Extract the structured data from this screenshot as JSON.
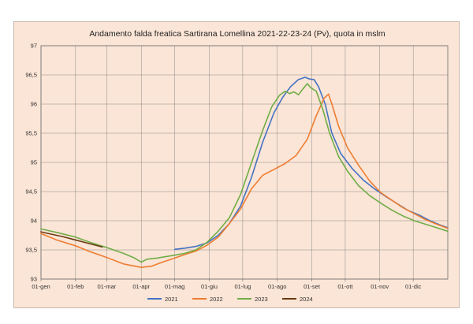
{
  "chart_data": {
    "type": "line",
    "title": "Andamento  falda freatica Sartirana Lomellina 2021-22-23-24 (Pv), quota in mslm",
    "xlabel": "",
    "ylabel": "",
    "ylim": [
      93,
      97
    ],
    "yticks": [
      93,
      93.5,
      94,
      94.5,
      95,
      95.5,
      96,
      96.5,
      97
    ],
    "ytick_labels": [
      "93",
      "93,5",
      "94",
      "94,5",
      "95",
      "95,5",
      "96",
      "96,5",
      "97"
    ],
    "x_unit": "day of year",
    "xlim": [
      1,
      366
    ],
    "xticks": [
      1,
      32,
      60,
      91,
      121,
      152,
      182,
      213,
      244,
      274,
      305,
      335
    ],
    "xtick_labels": [
      "01-gen",
      "01-feb",
      "01-mar",
      "01-apr",
      "01-mag",
      "01-giu",
      "01-lug",
      "01-ago",
      "01-set",
      "01-ott",
      "01-nov",
      "01-dic"
    ],
    "grid": true,
    "legend_position": "bottom",
    "series": [
      {
        "name": "2021",
        "color": "#4472c4",
        "points": [
          [
            121,
            93.51
          ],
          [
            130,
            93.53
          ],
          [
            140,
            93.56
          ],
          [
            150,
            93.62
          ],
          [
            160,
            93.75
          ],
          [
            170,
            93.95
          ],
          [
            180,
            94.25
          ],
          [
            190,
            94.75
          ],
          [
            200,
            95.35
          ],
          [
            210,
            95.85
          ],
          [
            218,
            96.12
          ],
          [
            225,
            96.3
          ],
          [
            232,
            96.42
          ],
          [
            238,
            96.46
          ],
          [
            242,
            96.43
          ],
          [
            246,
            96.42
          ],
          [
            250,
            96.3
          ],
          [
            256,
            96.0
          ],
          [
            262,
            95.5
          ],
          [
            270,
            95.15
          ],
          [
            280,
            94.9
          ],
          [
            290,
            94.7
          ],
          [
            300,
            94.55
          ],
          [
            310,
            94.42
          ],
          [
            320,
            94.3
          ],
          [
            330,
            94.18
          ],
          [
            340,
            94.1
          ],
          [
            350,
            94.0
          ],
          [
            360,
            93.92
          ],
          [
            366,
            93.88
          ]
        ]
      },
      {
        "name": "2022",
        "color": "#ed7d31",
        "points": [
          [
            1,
            93.78
          ],
          [
            15,
            93.67
          ],
          [
            32,
            93.57
          ],
          [
            45,
            93.47
          ],
          [
            60,
            93.37
          ],
          [
            75,
            93.26
          ],
          [
            91,
            93.2
          ],
          [
            100,
            93.22
          ],
          [
            110,
            93.29
          ],
          [
            121,
            93.36
          ],
          [
            130,
            93.42
          ],
          [
            140,
            93.48
          ],
          [
            150,
            93.58
          ],
          [
            160,
            93.72
          ],
          [
            170,
            93.95
          ],
          [
            180,
            94.2
          ],
          [
            190,
            94.55
          ],
          [
            200,
            94.78
          ],
          [
            210,
            94.88
          ],
          [
            220,
            94.98
          ],
          [
            230,
            95.12
          ],
          [
            240,
            95.4
          ],
          [
            248,
            95.8
          ],
          [
            255,
            96.1
          ],
          [
            259,
            96.17
          ],
          [
            262,
            96.0
          ],
          [
            268,
            95.62
          ],
          [
            276,
            95.25
          ],
          [
            286,
            94.95
          ],
          [
            296,
            94.68
          ],
          [
            306,
            94.48
          ],
          [
            316,
            94.35
          ],
          [
            326,
            94.22
          ],
          [
            336,
            94.12
          ],
          [
            346,
            94.02
          ],
          [
            356,
            93.94
          ],
          [
            366,
            93.87
          ]
        ]
      },
      {
        "name": "2023",
        "color": "#70ad47",
        "points": [
          [
            1,
            93.86
          ],
          [
            15,
            93.8
          ],
          [
            32,
            93.72
          ],
          [
            45,
            93.63
          ],
          [
            60,
            93.54
          ],
          [
            75,
            93.44
          ],
          [
            85,
            93.36
          ],
          [
            91,
            93.29
          ],
          [
            96,
            93.34
          ],
          [
            105,
            93.36
          ],
          [
            115,
            93.39
          ],
          [
            121,
            93.41
          ],
          [
            130,
            93.44
          ],
          [
            140,
            93.5
          ],
          [
            150,
            93.63
          ],
          [
            160,
            93.82
          ],
          [
            170,
            94.05
          ],
          [
            180,
            94.45
          ],
          [
            190,
            95.0
          ],
          [
            200,
            95.55
          ],
          [
            208,
            95.95
          ],
          [
            215,
            96.15
          ],
          [
            220,
            96.22
          ],
          [
            224,
            96.18
          ],
          [
            228,
            96.21
          ],
          [
            232,
            96.16
          ],
          [
            236,
            96.26
          ],
          [
            240,
            96.35
          ],
          [
            243,
            96.28
          ],
          [
            248,
            96.22
          ],
          [
            254,
            95.9
          ],
          [
            260,
            95.5
          ],
          [
            268,
            95.1
          ],
          [
            276,
            94.85
          ],
          [
            286,
            94.6
          ],
          [
            296,
            94.43
          ],
          [
            306,
            94.3
          ],
          [
            316,
            94.18
          ],
          [
            326,
            94.08
          ],
          [
            336,
            94.0
          ],
          [
            346,
            93.94
          ],
          [
            356,
            93.88
          ],
          [
            366,
            93.82
          ]
        ]
      },
      {
        "name": "2024",
        "color": "#6b3a11",
        "points": [
          [
            1,
            93.81
          ],
          [
            10,
            93.77
          ],
          [
            20,
            93.73
          ],
          [
            30,
            93.68
          ],
          [
            40,
            93.63
          ],
          [
            50,
            93.58
          ],
          [
            56,
            93.55
          ]
        ]
      }
    ]
  }
}
